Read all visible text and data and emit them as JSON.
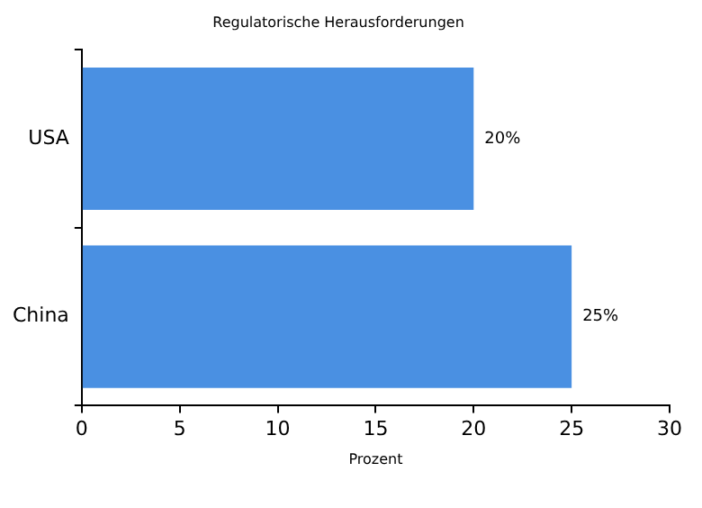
{
  "chart_data": {
    "type": "bar",
    "orientation": "horizontal",
    "title": "Regulatorische Herausforderungen",
    "xlabel": "Prozent",
    "categories": [
      "USA",
      "China"
    ],
    "series": [
      {
        "color": "#4a90e2",
        "values": [
          20,
          25
        ],
        "value_labels": [
          "20%",
          "25%"
        ]
      }
    ],
    "xlim": [
      0,
      30
    ],
    "xticks": [
      0,
      5,
      10,
      15,
      20,
      25,
      30
    ],
    "grid": false,
    "legend": false
  }
}
